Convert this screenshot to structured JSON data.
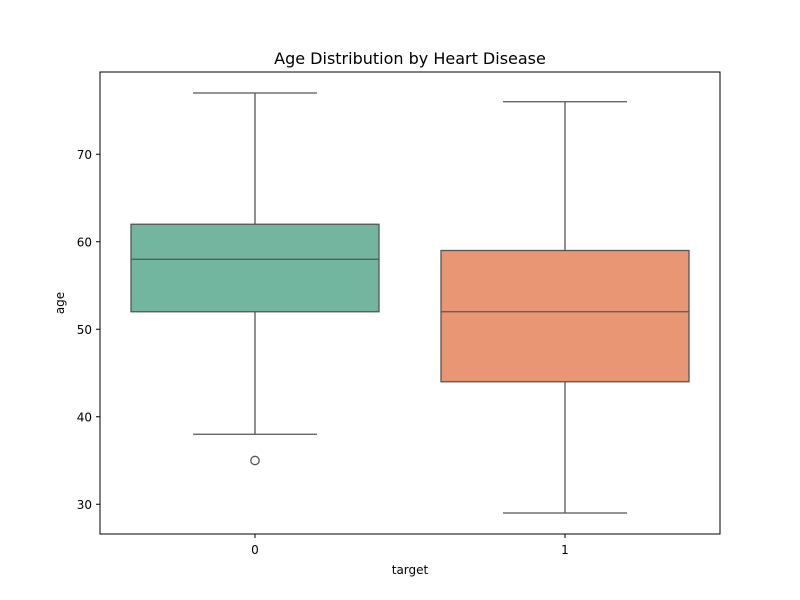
{
  "chart_data": {
    "type": "box",
    "title": "Age Distribution by Heart Disease",
    "xlabel": "target",
    "ylabel": "age",
    "ylim": [
      26.6,
      79.4
    ],
    "yticks": [
      30,
      40,
      50,
      60,
      70
    ],
    "grid": false,
    "categories": [
      "0",
      "1"
    ],
    "boxes": [
      {
        "category": "0",
        "whisker_low": 38,
        "q1": 52,
        "median": 58,
        "q3": 62,
        "whisker_high": 77,
        "outliers": [
          35
        ],
        "color": "#73b6a0"
      },
      {
        "category": "1",
        "whisker_low": 29,
        "q1": 44,
        "median": 52,
        "q3": 59,
        "whisker_high": 76,
        "outliers": [],
        "color": "#e99675"
      }
    ],
    "line_color": "#555555"
  }
}
